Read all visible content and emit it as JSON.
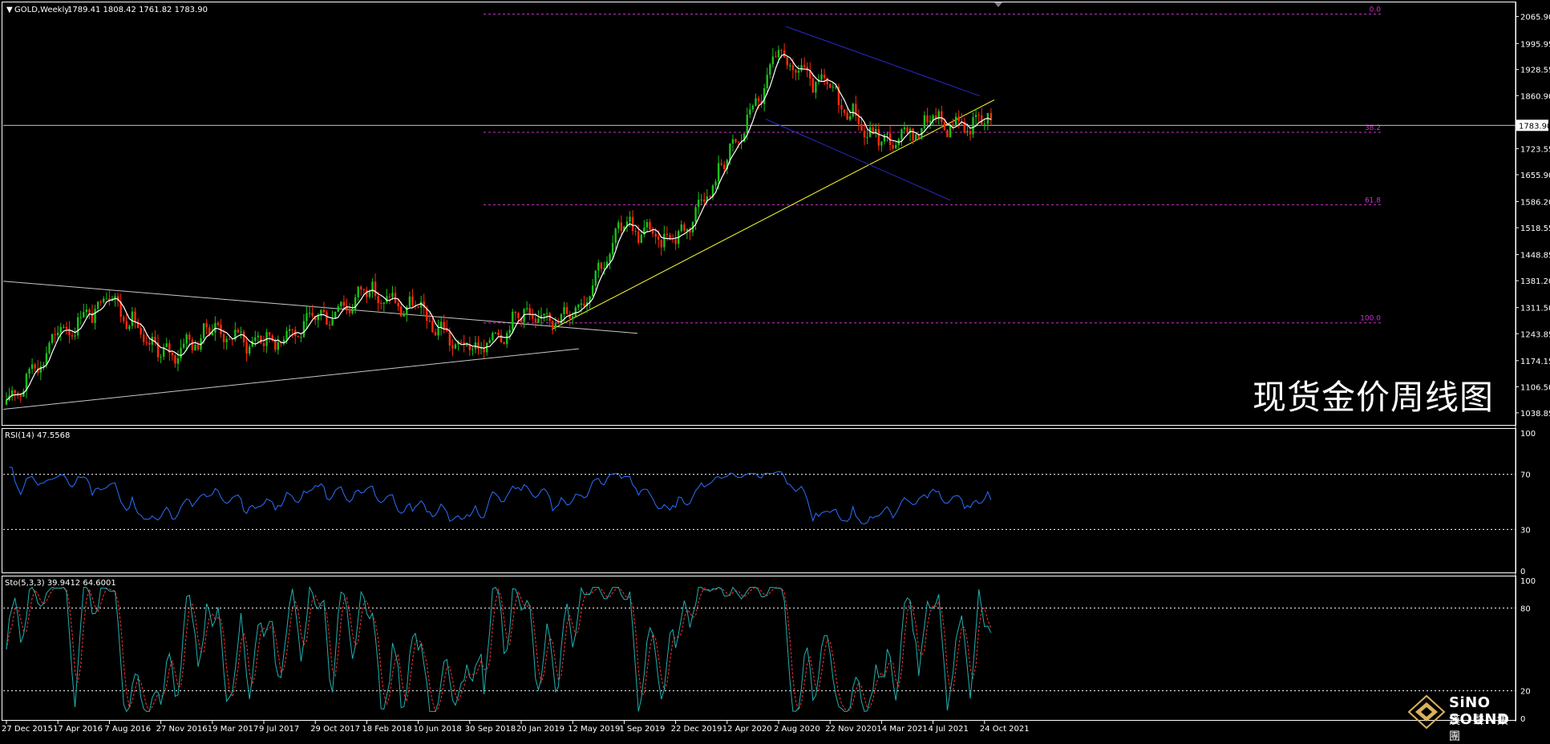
{
  "symbol_info": {
    "symbol": "GOLD,Weekly",
    "ohlc": "1789.41 1808.42 1761.82 1783.90"
  },
  "overlay_title": "现货金价周线图",
  "colors": {
    "background": "#000000",
    "bull_candle": "#19c21a",
    "bear_candle": "#ff2a0a",
    "ma_line": "#ffffff",
    "fib_line": "#cc33cc",
    "trend_line": "#ffff33",
    "channel_line": "#2a2ad0",
    "rsi_line": "#2a6fff",
    "sto_main": "#20b0b0",
    "sto_signal": "#ff3030"
  },
  "price_axis": {
    "labels": [
      "2065.90",
      "1995.95",
      "1928.55",
      "1860.90",
      "1723.55",
      "1655.90",
      "1586.20",
      "1518.55",
      "1448.85",
      "1381.20",
      "1311.50",
      "1243.85",
      "1174.15",
      "1106.50",
      "1038.85"
    ],
    "current_price_label": "1783.90"
  },
  "fib_levels": [
    {
      "label": "0.0",
      "price": 2072
    },
    {
      "label": "38.2",
      "price": 1766
    },
    {
      "label": "61.8",
      "price": 1578
    },
    {
      "label": "100.0",
      "price": 1272
    }
  ],
  "date_labels": [
    "27 Dec 2015",
    "17 Apr 2016",
    "7 Aug 2016",
    "27 Nov 2016",
    "19 Mar 2017",
    "9 Jul 2017",
    "29 Oct 2017",
    "18 Feb 2018",
    "10 Jun 2018",
    "30 Sep 2018",
    "20 Jan 2019",
    "12 May 2019",
    "1 Sep 2019",
    "22 Dec 2019",
    "12 Apr 2020",
    "2 Aug 2020",
    "22 Nov 2020",
    "14 Mar 2021",
    "4 Jul 2021",
    "24 Oct 2021"
  ],
  "rsi": {
    "title": "RSI(14) 47.5568",
    "levels": [
      "100",
      "70",
      "30",
      "0"
    ]
  },
  "stochastic": {
    "title": "Sto(5,3,3) 39.9412 64.6001",
    "levels": [
      "100",
      "80",
      "20",
      "0"
    ]
  },
  "logo": {
    "name": "SiNO SOUND",
    "chinese": "漢聲集團"
  },
  "chart_data": {
    "type": "candlestick",
    "title": "GOLD,Weekly",
    "ylim": [
      1020,
      2090
    ],
    "anchor_closes": [
      {
        "date": "27 Dec 2015",
        "close": 1060
      },
      {
        "date": "17 Apr 2016",
        "close": 1235
      },
      {
        "date": "7 Aug 2016",
        "close": 1340
      },
      {
        "date": "27 Nov 2016",
        "close": 1180
      },
      {
        "date": "19 Mar 2017",
        "close": 1250
      },
      {
        "date": "9 Jul 2017",
        "close": 1215
      },
      {
        "date": "29 Oct 2017",
        "close": 1275
      },
      {
        "date": "18 Feb 2018",
        "close": 1350
      },
      {
        "date": "10 Jun 2018",
        "close": 1300
      },
      {
        "date": "30 Sep 2018",
        "close": 1190
      },
      {
        "date": "20 Jan 2019",
        "close": 1285
      },
      {
        "date": "12 May 2019",
        "close": 1285
      },
      {
        "date": "1 Sep 2019",
        "close": 1525
      },
      {
        "date": "22 Dec 2019",
        "close": 1480
      },
      {
        "date": "12 Apr 2020",
        "close": 1690
      },
      {
        "date": "2 Aug 2020",
        "close": 1960
      },
      {
        "date": "22 Nov 2020",
        "close": 1870
      },
      {
        "date": "14 Mar 2021",
        "close": 1730
      },
      {
        "date": "4 Jul 2021",
        "close": 1790
      },
      {
        "date": "24 Oct 2021",
        "close": 1784
      }
    ],
    "rsi_range": [
      0,
      100
    ],
    "stochastic_range": [
      0,
      100
    ]
  }
}
